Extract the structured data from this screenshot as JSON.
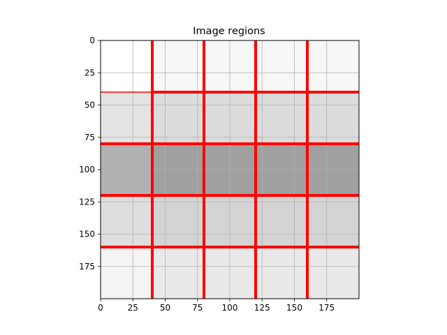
{
  "chart_data": {
    "type": "heatmap",
    "title": "Image regions",
    "xlabel": "",
    "ylabel": "",
    "xlim": [
      0,
      200
    ],
    "ylim": [
      200,
      0
    ],
    "x_ticks": [
      0,
      25,
      50,
      75,
      100,
      125,
      150,
      175
    ],
    "y_ticks": [
      0,
      25,
      50,
      75,
      100,
      125,
      150,
      175
    ],
    "grid": true,
    "vertical_cuts": [
      40,
      80,
      120,
      160
    ],
    "horizontal_cuts": [
      40,
      80,
      120,
      160
    ],
    "cut_color": "#ff0000",
    "bands": [
      {
        "y_from": 0,
        "y_to": 40,
        "cells": [
          {
            "x_from": 0,
            "x_to": 40,
            "color": "#ffffff"
          },
          {
            "x_from": 40,
            "x_to": 200,
            "color": "#f7f7f7"
          }
        ]
      },
      {
        "y_from": 40,
        "y_to": 80,
        "cells": [
          {
            "x_from": 0,
            "x_to": 40,
            "color": "#e3e3e3"
          },
          {
            "x_from": 40,
            "x_to": 200,
            "color": "#dcdcdc"
          }
        ]
      },
      {
        "y_from": 80,
        "y_to": 120,
        "cells": [
          {
            "x_from": 0,
            "x_to": 40,
            "color": "#b1b1b1"
          },
          {
            "x_from": 40,
            "x_to": 200,
            "color": "#a0a0a0"
          }
        ]
      },
      {
        "y_from": 120,
        "y_to": 160,
        "cells": [
          {
            "x_from": 0,
            "x_to": 40,
            "color": "#dedede"
          },
          {
            "x_from": 40,
            "x_to": 200,
            "color": "#d4d4d4"
          }
        ]
      },
      {
        "y_from": 160,
        "y_to": 200,
        "cells": [
          {
            "x_from": 0,
            "x_to": 40,
            "color": "#f4f4f4"
          },
          {
            "x_from": 40,
            "x_to": 200,
            "color": "#e9e9e9"
          }
        ]
      }
    ]
  }
}
